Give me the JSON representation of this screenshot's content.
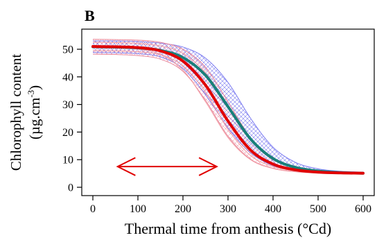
{
  "figure": {
    "panel_label": "B"
  },
  "chart_data": {
    "type": "line",
    "title": "",
    "xlabel": "Thermal time from anthesis (°Cd)",
    "ylabel_line1": "Chlorophyll content",
    "ylabel_unit_base": "(µg.cm",
    "ylabel_unit_exp": "-3",
    "ylabel_unit_close": ")",
    "xlim": [
      0,
      600
    ],
    "ylim": [
      0,
      55
    ],
    "xticks": [
      0,
      100,
      200,
      300,
      400,
      500,
      600
    ],
    "yticks": [
      0,
      10,
      20,
      30,
      40,
      50
    ],
    "grid": false,
    "legend": "none",
    "x": [
      0,
      50,
      100,
      150,
      200,
      250,
      300,
      350,
      400,
      450,
      500,
      550,
      600
    ],
    "series": [
      {
        "color": "#1a7f7a",
        "values": [
          50.9,
          50.8,
          50.5,
          49.6,
          47.0,
          40.6,
          29.2,
          17.5,
          10.4,
          7.2,
          5.9,
          5.3,
          5.1
        ]
      },
      {
        "color": "#e00000",
        "values": [
          51.0,
          50.9,
          50.6,
          49.4,
          45.7,
          37.0,
          24.0,
          13.5,
          8.4,
          6.3,
          5.5,
          5.2,
          5.1
        ]
      }
    ],
    "bands": [
      {
        "color": "#7b7bf0",
        "upper": [
          53.0,
          53.0,
          52.8,
          52.2,
          50.8,
          46.8,
          38.0,
          25.0,
          14.5,
          9.0,
          6.7,
          5.8,
          5.5
        ],
        "lower": [
          48.8,
          48.7,
          48.4,
          47.2,
          43.0,
          33.5,
          21.5,
          12.5,
          7.8,
          6.0,
          5.3,
          5.0,
          4.9
        ]
      },
      {
        "color": "#e8869a",
        "upper": [
          53.6,
          53.5,
          53.3,
          52.5,
          50.0,
          43.5,
          31.0,
          18.0,
          10.5,
          7.3,
          6.0,
          5.4,
          5.2
        ],
        "lower": [
          48.2,
          48.1,
          47.7,
          46.4,
          42.0,
          31.5,
          18.5,
          10.2,
          6.9,
          5.7,
          5.1,
          4.9,
          4.8
        ]
      }
    ],
    "extra_lines": [
      {
        "color": "#f3a0a8",
        "values": [
          49.5,
          49.4,
          49.1,
          48.0,
          44.0,
          34.5,
          21.0,
          11.5,
          7.5,
          6.0,
          5.3,
          5.0,
          4.9
        ]
      },
      {
        "color": "#f3a0a8",
        "values": [
          52.5,
          52.4,
          52.1,
          51.2,
          48.5,
          41.5,
          29.0,
          17.0,
          10.0,
          7.0,
          5.8,
          5.3,
          5.1
        ]
      },
      {
        "color": "#f3a0a8",
        "values": [
          50.5,
          50.4,
          50.0,
          48.2,
          42.5,
          31.0,
          18.0,
          10.0,
          6.8,
          5.6,
          5.1,
          4.9,
          4.8
        ]
      }
    ],
    "annotation_arrow": {
      "color": "#e00000",
      "x_start": 55,
      "x_end": 275,
      "y": 7.5
    }
  }
}
